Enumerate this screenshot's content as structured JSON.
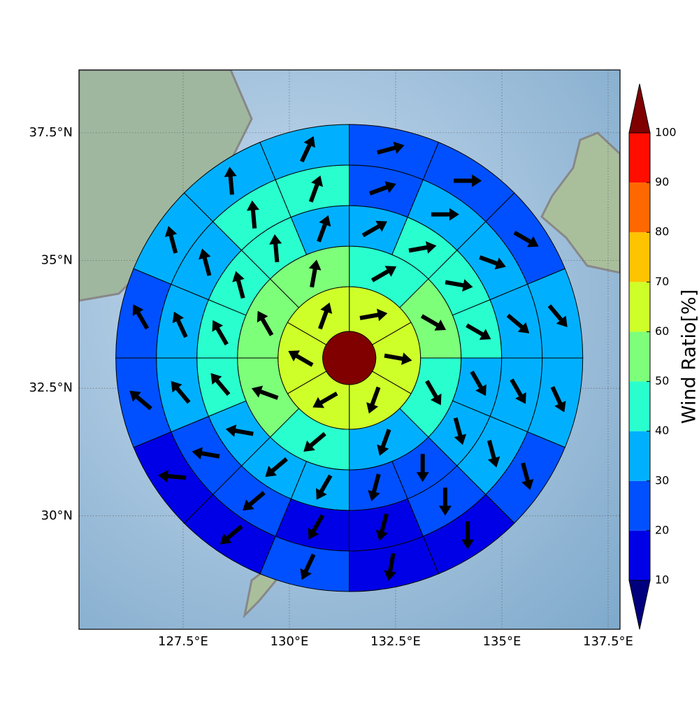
{
  "chart_data": {
    "type": "polar-map",
    "xlim": [
      125.05,
      137.78
    ],
    "ylim": [
      27.78,
      38.73
    ],
    "xticks": [
      {
        "value": 127.5,
        "label": "127.5°E"
      },
      {
        "value": 130,
        "label": "130°E"
      },
      {
        "value": 132.5,
        "label": "132.5°E"
      },
      {
        "value": 135,
        "label": "135°E"
      },
      {
        "value": 137.5,
        "label": "137.5°E"
      }
    ],
    "yticks": [
      {
        "value": 30,
        "label": "30°N"
      },
      {
        "value": 32.5,
        "label": "32.5°N"
      },
      {
        "value": 35,
        "label": "35°N"
      },
      {
        "value": 37.5,
        "label": "37.5°N"
      }
    ],
    "grid": true,
    "center_lon": 131.41,
    "center_lat": 33.09,
    "center_value": 105,
    "rings": [
      {
        "values": [
          65,
          65,
          65,
          65,
          65,
          65
        ],
        "directions": [
          80,
          100,
          200,
          240,
          300,
          20
        ]
      },
      {
        "values": [
          45,
          55,
          45,
          35,
          45,
          55,
          55,
          55
        ],
        "directions": [
          60,
          120,
          150,
          200,
          230,
          290,
          330,
          10
        ]
      },
      {
        "values": [
          35,
          45,
          45,
          45,
          35,
          35,
          25,
          25,
          35,
          35,
          35,
          45,
          45,
          45,
          45,
          35
        ],
        "directions": [
          60,
          80,
          100,
          120,
          150,
          165,
          180,
          195,
          210,
          230,
          280,
          320,
          330,
          345,
          355,
          20
        ]
      },
      {
        "values": [
          25,
          35,
          35,
          35,
          35,
          35,
          25,
          15,
          15,
          25,
          25,
          35,
          35,
          35,
          45,
          45
        ],
        "directions": [
          70,
          90,
          110,
          130,
          150,
          165,
          180,
          195,
          210,
          230,
          280,
          320,
          335,
          345,
          355,
          20
        ]
      },
      {
        "values": [
          25,
          25,
          25,
          35,
          35,
          25,
          15,
          15,
          25,
          15,
          15,
          25,
          25,
          35,
          35,
          35
        ],
        "directions": [
          75,
          90,
          120,
          140,
          155,
          165,
          180,
          190,
          205,
          230,
          275,
          310,
          330,
          345,
          355,
          25
        ]
      }
    ],
    "colorbar": {
      "label": "Wind Ratio[%]",
      "levels": [
        10,
        20,
        30,
        40,
        50,
        60,
        70,
        80,
        90,
        100
      ],
      "colors": [
        "#00007f",
        "#0000e6",
        "#0050ff",
        "#00b0ff",
        "#29ffce",
        "#7dff7a",
        "#ceff29",
        "#ffc400",
        "#ff6800",
        "#ff0d00",
        "#800000"
      ]
    }
  }
}
